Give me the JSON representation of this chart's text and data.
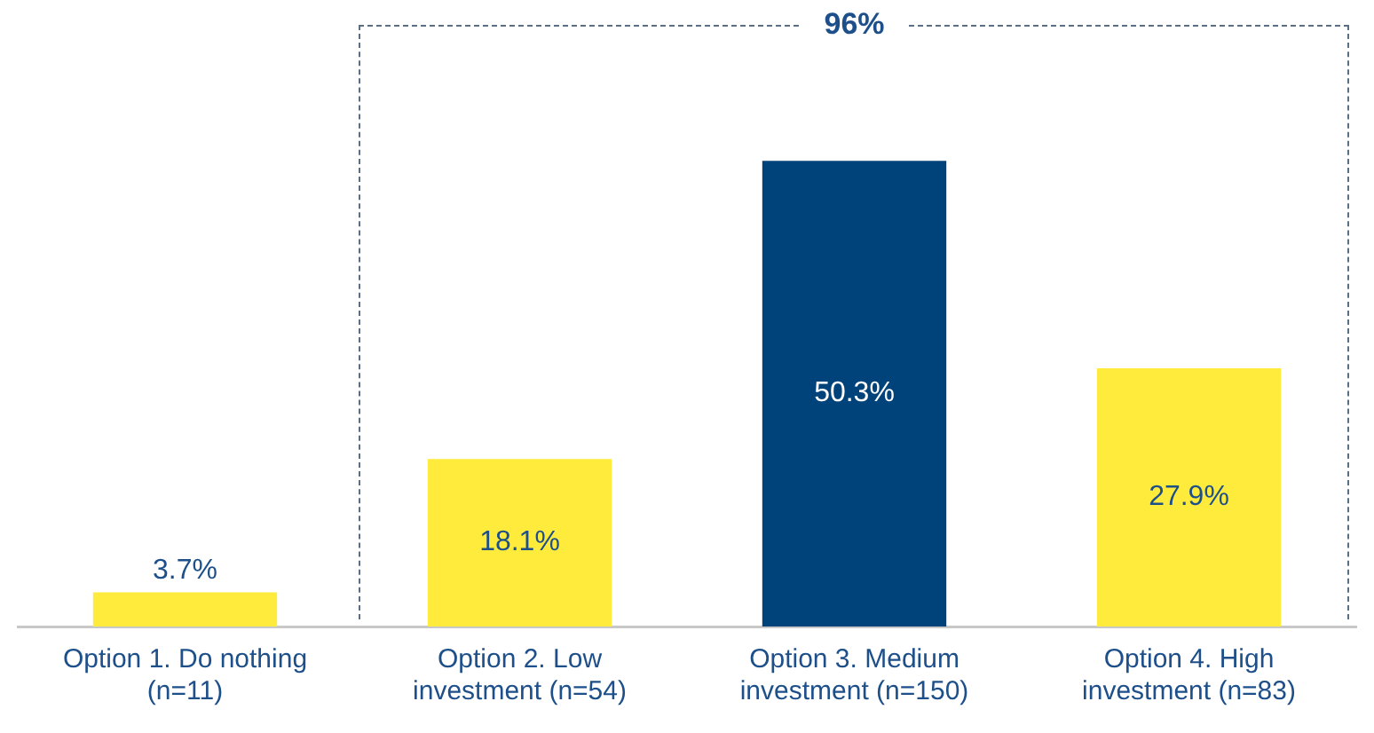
{
  "chart_data": {
    "type": "bar",
    "categories": [
      "Option 1. Do nothing (n=11)",
      "Option 2. Low investment (n=54)",
      "Option 3. Medium investment (n=150)",
      "Option 4. High investment (n=83)"
    ],
    "values": [
      3.7,
      18.1,
      50.3,
      27.9
    ],
    "colors": [
      "#ffeb3b",
      "#ffeb3b",
      "#00427a",
      "#ffeb3b"
    ],
    "value_labels": [
      "3.7%",
      "18.1%",
      "50.3%",
      "27.9%"
    ],
    "annotations": [
      "96%"
    ],
    "grid": false,
    "legend": false,
    "tick_labels": "x"
  }
}
